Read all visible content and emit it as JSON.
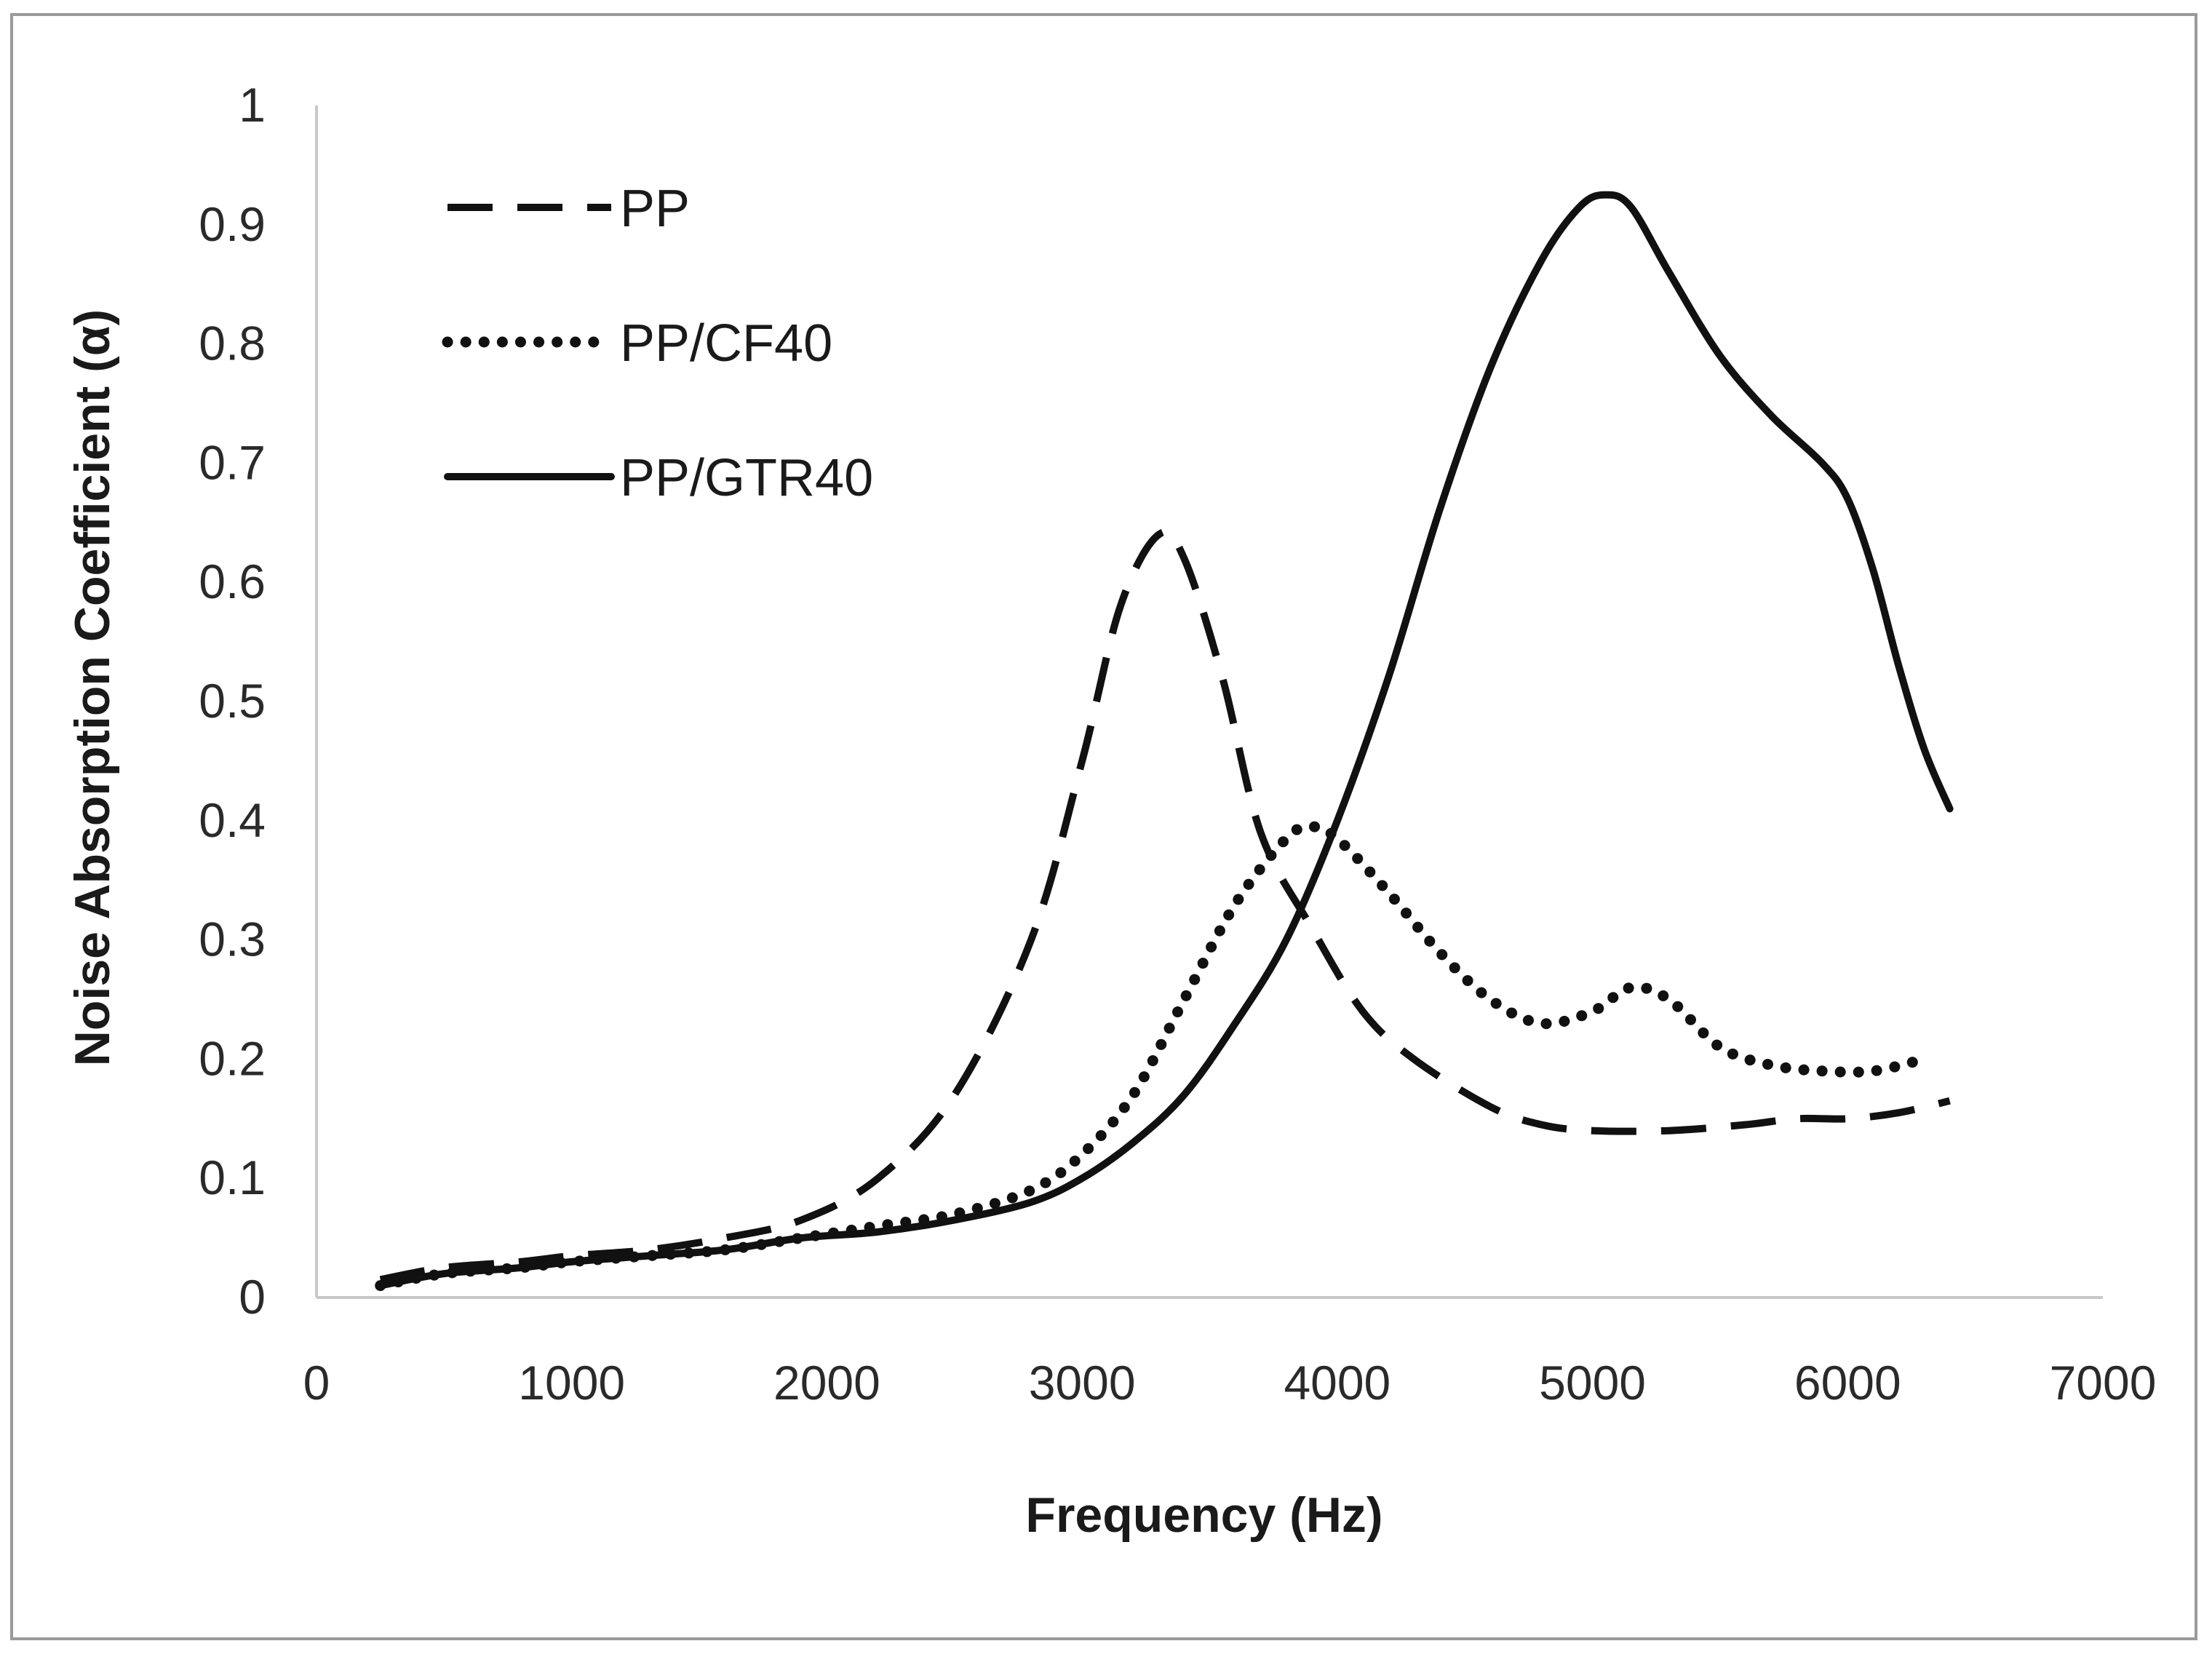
{
  "chart_data": {
    "type": "line",
    "title": "",
    "xlabel": "Frequency (Hz)",
    "ylabel": "Noise Absorption Coefficient (α)",
    "xlim": [
      0,
      7000
    ],
    "ylim": [
      0,
      1
    ],
    "xticks": [
      "0",
      "1000",
      "2000",
      "3000",
      "4000",
      "5000",
      "6000",
      "7000"
    ],
    "yticks": [
      "0",
      "0.1",
      "0.2",
      "0.3",
      "0.4",
      "0.5",
      "0.6",
      "0.7",
      "0.8",
      "0.9",
      "1"
    ],
    "grid": false,
    "legend_position": "top-left",
    "series": [
      {
        "name": "PP",
        "style": "dashed",
        "color": "#111111",
        "x": [
          250,
          500,
          800,
          1000,
          1300,
          1600,
          1900,
          2200,
          2500,
          2800,
          3000,
          3150,
          3300,
          3400,
          3550,
          3700,
          3900,
          4100,
          4300,
          4600,
          4800,
          5000,
          5300,
          5600,
          5800,
          6000,
          6200,
          6400
        ],
        "y": [
          0.015,
          0.025,
          0.03,
          0.035,
          0.04,
          0.05,
          0.065,
          0.1,
          0.17,
          0.3,
          0.45,
          0.58,
          0.64,
          0.62,
          0.52,
          0.39,
          0.31,
          0.24,
          0.2,
          0.16,
          0.145,
          0.14,
          0.14,
          0.145,
          0.15,
          0.15,
          0.155,
          0.165
        ]
      },
      {
        "name": "PP/CF40",
        "style": "dotted",
        "color": "#111111",
        "x": [
          250,
          500,
          800,
          1000,
          1300,
          1600,
          1900,
          2200,
          2500,
          2800,
          3000,
          3200,
          3400,
          3600,
          3800,
          3900,
          4000,
          4200,
          4400,
          4600,
          4800,
          5000,
          5150,
          5300,
          5500,
          5700,
          5900,
          6100,
          6300
        ],
        "y": [
          0.01,
          0.02,
          0.025,
          0.03,
          0.035,
          0.04,
          0.05,
          0.06,
          0.07,
          0.09,
          0.12,
          0.17,
          0.25,
          0.33,
          0.385,
          0.395,
          0.385,
          0.34,
          0.29,
          0.25,
          0.23,
          0.24,
          0.26,
          0.25,
          0.21,
          0.195,
          0.19,
          0.19,
          0.2
        ]
      },
      {
        "name": "PP/GTR40",
        "style": "solid",
        "color": "#111111",
        "x": [
          250,
          500,
          800,
          1000,
          1300,
          1600,
          1900,
          2200,
          2500,
          2800,
          3000,
          3200,
          3400,
          3600,
          3800,
          4000,
          4200,
          4400,
          4600,
          4800,
          4950,
          5050,
          5150,
          5300,
          5500,
          5700,
          5900,
          6000,
          6100,
          6200,
          6300,
          6400
        ],
        "y": [
          0.01,
          0.02,
          0.025,
          0.03,
          0.035,
          0.04,
          0.05,
          0.055,
          0.065,
          0.08,
          0.1,
          0.13,
          0.17,
          0.23,
          0.3,
          0.4,
          0.52,
          0.66,
          0.78,
          0.87,
          0.915,
          0.925,
          0.915,
          0.86,
          0.79,
          0.74,
          0.7,
          0.67,
          0.61,
          0.53,
          0.46,
          0.41
        ]
      }
    ]
  }
}
